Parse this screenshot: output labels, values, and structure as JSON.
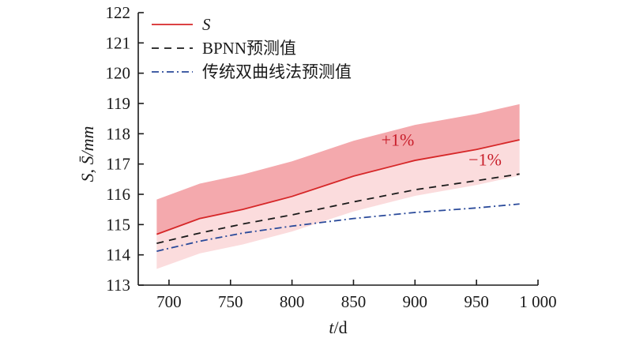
{
  "chart_data": {
    "type": "line",
    "xlabel_italic": "t",
    "xlabel_rest": "/d",
    "ylabel": "S, S̄/mm",
    "xlim": [
      675,
      1000
    ],
    "ylim": [
      113,
      122
    ],
    "x_ticks": [
      700,
      750,
      800,
      850,
      900,
      950,
      1000
    ],
    "x_tick_labels": [
      "700",
      "750",
      "800",
      "850",
      "900",
      "950",
      "1 000"
    ],
    "y_ticks": [
      113,
      114,
      115,
      116,
      117,
      118,
      119,
      120,
      121,
      122
    ],
    "y_tick_labels": [
      "113",
      "114",
      "115",
      "116",
      "117",
      "118",
      "119",
      "120",
      "121",
      "122"
    ],
    "legend_position": "top-left",
    "series": [
      {
        "name": "S",
        "color": "#d62728",
        "dash": "solid",
        "x": [
          690,
          725,
          760,
          800,
          850,
          900,
          950,
          985
        ],
        "values": [
          114.68,
          115.2,
          115.5,
          115.93,
          116.6,
          117.12,
          117.48,
          117.8
        ]
      },
      {
        "name": "BPNN预测值",
        "color": "#1a1a1a",
        "dash": "dashed",
        "x": [
          690,
          725,
          760,
          800,
          850,
          900,
          950,
          985
        ],
        "values": [
          114.38,
          114.72,
          115.02,
          115.32,
          115.75,
          116.15,
          116.45,
          116.67
        ]
      },
      {
        "name": "传统双曲线法预测值",
        "color": "#2a4a9a",
        "dash": "dashdot",
        "x": [
          690,
          725,
          760,
          800,
          850,
          900,
          950,
          985
        ],
        "values": [
          114.12,
          114.45,
          114.72,
          114.95,
          115.2,
          115.4,
          115.55,
          115.68
        ]
      }
    ],
    "bands": [
      {
        "label": "+1%",
        "color": "#f4a9ad",
        "label_color": "#c81e2a",
        "label_x": 886,
        "label_y": 117.6
      },
      {
        "label": "−1%",
        "color": "#fbdcdd",
        "label_color": "#c81e2a",
        "label_x": 957,
        "label_y": 116.95
      }
    ]
  }
}
